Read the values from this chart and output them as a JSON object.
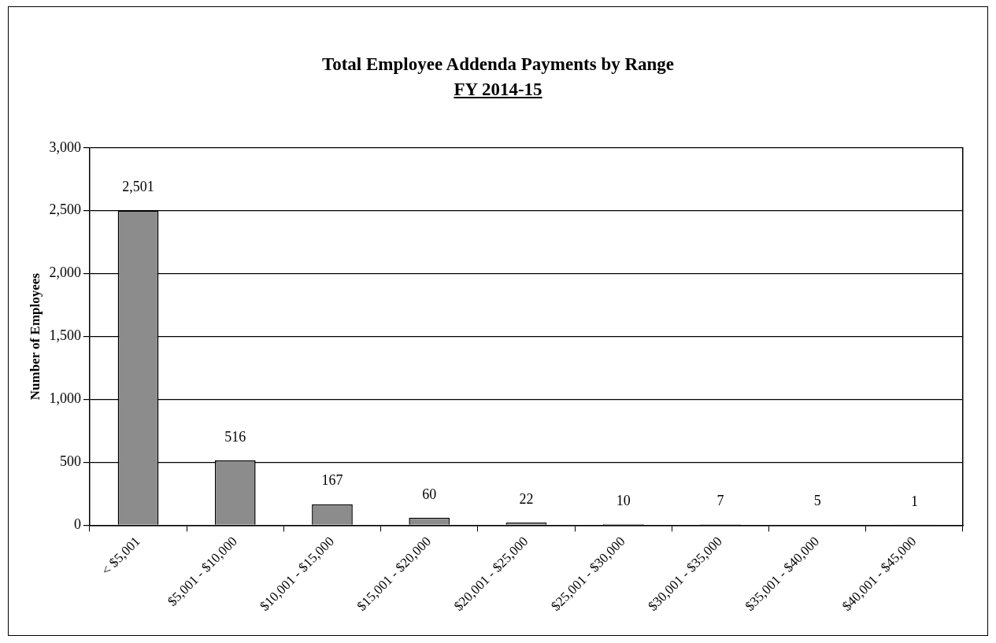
{
  "chart_data": {
    "type": "bar",
    "title": "Total Employee Addenda Payments by Range",
    "subtitle": "FY 2014-15",
    "ylabel": "Number of Employees",
    "categories": [
      "< $5,001",
      "$5,001 - $10,000",
      "$10,001 - $15,000",
      "$15,001 - $20,000",
      "$20,001 - $25,000",
      "$25,001 - $30,000",
      "$30,001 - $35,000",
      "$35,001 - $40,000",
      "$40,001 - $45,000"
    ],
    "values": [
      2501,
      516,
      167,
      60,
      22,
      10,
      7,
      5,
      1
    ],
    "value_labels": [
      "2,501",
      "516",
      "167",
      "60",
      "22",
      "10",
      "7",
      "5",
      "1"
    ],
    "color": "#8c8c8c",
    "ylim": [
      0,
      3000
    ],
    "yticks": [
      0,
      500,
      {
        "value": 1000,
        "label": "1,000"
      },
      {
        "value": 1500,
        "label": "1,500"
      },
      {
        "value": 2000,
        "label": "2,000"
      },
      {
        "value": 2500,
        "label": "2,500"
      },
      {
        "value": 3000,
        "label": "3,000"
      }
    ],
    "grid": "y",
    "legend": false
  }
}
